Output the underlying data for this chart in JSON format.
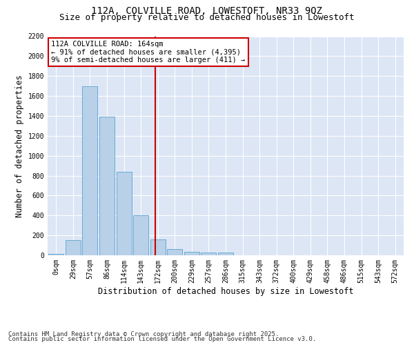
{
  "title1": "112A, COLVILLE ROAD, LOWESTOFT, NR33 9QZ",
  "title2": "Size of property relative to detached houses in Lowestoft",
  "xlabel": "Distribution of detached houses by size in Lowestoft",
  "ylabel": "Number of detached properties",
  "categories": [
    "0sqm",
    "29sqm",
    "57sqm",
    "86sqm",
    "114sqm",
    "143sqm",
    "172sqm",
    "200sqm",
    "229sqm",
    "257sqm",
    "286sqm",
    "315sqm",
    "343sqm",
    "372sqm",
    "400sqm",
    "429sqm",
    "458sqm",
    "486sqm",
    "515sqm",
    "543sqm",
    "572sqm"
  ],
  "values": [
    15,
    155,
    1700,
    1395,
    835,
    400,
    160,
    65,
    38,
    28,
    27,
    0,
    0,
    0,
    0,
    0,
    0,
    0,
    0,
    0,
    0
  ],
  "bar_color": "#b8d0e8",
  "bar_edge_color": "#6aaad4",
  "vline_x": 5.85,
  "vline_color": "#cc0000",
  "annotation_text": "112A COLVILLE ROAD: 164sqm\n← 91% of detached houses are smaller (4,395)\n9% of semi-detached houses are larger (411) →",
  "annotation_box_color": "#cc0000",
  "ylim": [
    0,
    2200
  ],
  "yticks": [
    0,
    200,
    400,
    600,
    800,
    1000,
    1200,
    1400,
    1600,
    1800,
    2000,
    2200
  ],
  "background_color": "#dce6f5",
  "fig_background": "#ffffff",
  "footer1": "Contains HM Land Registry data © Crown copyright and database right 2025.",
  "footer2": "Contains public sector information licensed under the Open Government Licence v3.0.",
  "title_fontsize": 10,
  "subtitle_fontsize": 9,
  "axis_label_fontsize": 8.5,
  "tick_fontsize": 7,
  "footer_fontsize": 6.5,
  "annotation_fontsize": 7.5
}
